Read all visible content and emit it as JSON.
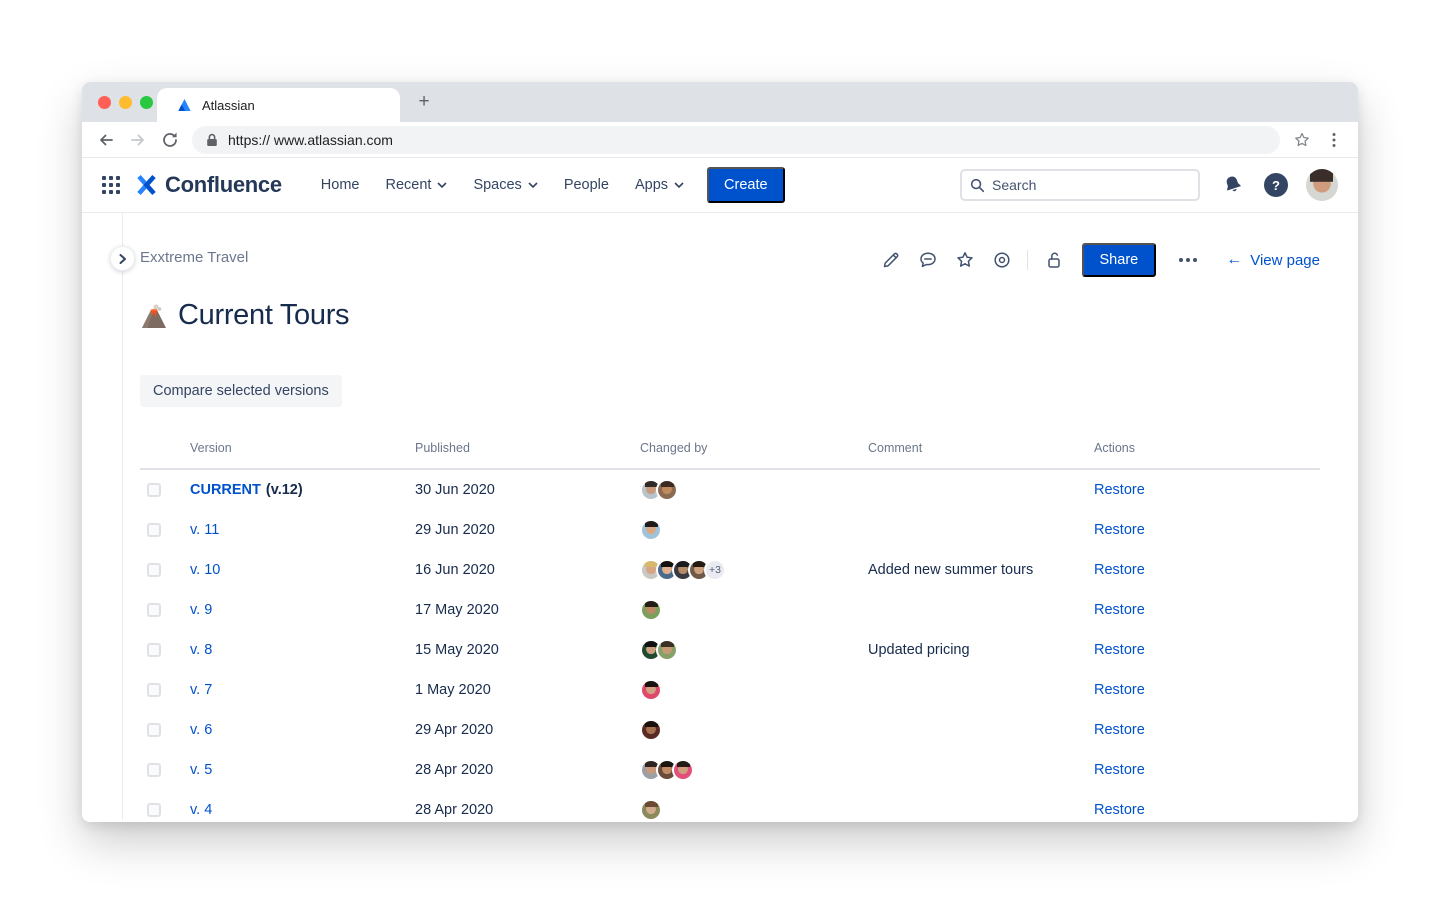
{
  "browser": {
    "tab_title": "Atlassian",
    "new_tab": "+",
    "url": "https:// www.atlassian.com"
  },
  "header": {
    "product": "Confluence",
    "nav": {
      "home": "Home",
      "recent": "Recent",
      "spaces": "Spaces",
      "people": "People",
      "apps": "Apps"
    },
    "create": "Create",
    "search_placeholder": "Search",
    "help": "?"
  },
  "page": {
    "breadcrumb": "Exxtreme Travel",
    "title": "Current Tours",
    "share": "Share",
    "view_page": "View page",
    "compare": "Compare selected versions"
  },
  "table": {
    "headers": {
      "version": "Version",
      "published": "Published",
      "changed_by": "Changed by",
      "comment": "Comment",
      "actions": "Actions"
    },
    "rows": [
      {
        "version": "CURRENT",
        "suffix": "(v.12)",
        "published": "30 Jun 2020",
        "comment": "",
        "action": "Restore",
        "avatars": [
          {
            "bg": "#b8c4cc",
            "hair": "#2f2a28",
            "skin": "#c99b7c"
          },
          {
            "bg": "#8a6a52",
            "hair": "#3b2b20",
            "skin": "#c08a5f"
          }
        ]
      },
      {
        "version": "v. 11",
        "published": "29 Jun 2020",
        "comment": "",
        "action": "Restore",
        "avatars": [
          {
            "bg": "#9fc4da",
            "hair": "#1f1b1a",
            "skin": "#d9a886"
          }
        ]
      },
      {
        "version": "v. 10",
        "published": "16 Jun 2020",
        "comment": "Added new summer tours",
        "action": "Restore",
        "plus": "+3",
        "avatars": [
          {
            "bg": "#c9c9c4",
            "hair": "#d8b86e",
            "skin": "#d8a583"
          },
          {
            "bg": "#4a6a8a",
            "hair": "#14100f",
            "skin": "#e0b08e"
          },
          {
            "bg": "#3a3a42",
            "hair": "#1a1a1e",
            "skin": "#b58a66"
          },
          {
            "bg": "#6f5a4a",
            "hair": "#241a14",
            "skin": "#caa07e"
          }
        ]
      },
      {
        "version": "v. 9",
        "published": "17 May 2020",
        "comment": "",
        "action": "Restore",
        "avatars": [
          {
            "bg": "#7aa05a",
            "hair": "#241c16",
            "skin": "#b98a63"
          }
        ]
      },
      {
        "version": "v. 8",
        "published": "15 May 2020",
        "comment": "Updated pricing",
        "action": "Restore",
        "avatars": [
          {
            "bg": "#1f4a2e",
            "hair": "#101010",
            "skin": "#caa07e"
          },
          {
            "bg": "#86a06a",
            "hair": "#3c2f24",
            "skin": "#c89a74"
          }
        ]
      },
      {
        "version": "v. 7",
        "published": "1 May 2020",
        "comment": "",
        "action": "Restore",
        "avatars": [
          {
            "bg": "#e04a6a",
            "hair": "#17110f",
            "skin": "#d2a182"
          }
        ]
      },
      {
        "version": "v. 6",
        "published": "29 Apr 2020",
        "comment": "",
        "action": "Restore",
        "avatars": [
          {
            "bg": "#5a2a24",
            "hair": "#17100d",
            "skin": "#a5714e"
          }
        ]
      },
      {
        "version": "v. 5",
        "published": "28 Apr 2020",
        "comment": "",
        "action": "Restore",
        "avatars": [
          {
            "bg": "#9aa0a6",
            "hair": "#2c2420",
            "skin": "#c9997a"
          },
          {
            "bg": "#6a4a3a",
            "hair": "#1c140f",
            "skin": "#c08a62"
          },
          {
            "bg": "#e0507a",
            "hair": "#241a16",
            "skin": "#cf9f80"
          }
        ]
      },
      {
        "version": "v. 4",
        "published": "28 Apr 2020",
        "comment": "",
        "action": "Restore",
        "avatars": [
          {
            "bg": "#8a8a5a",
            "hair": "#6a4a32",
            "skin": "#d2ab8c"
          }
        ]
      }
    ]
  },
  "colors": {
    "accent": "#0052CC",
    "link": "#0052CC",
    "title_text": "#172B4D",
    "muted_text": "#6B778C"
  }
}
